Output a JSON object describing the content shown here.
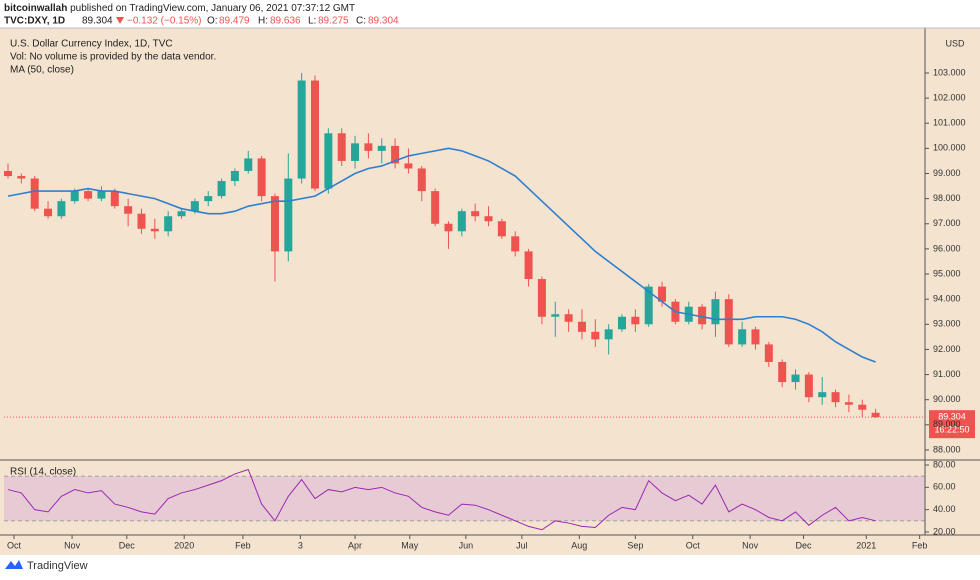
{
  "header": {
    "publisher": "bitcoinwallah",
    "published": "published on TradingView.com, January 06, 2021 07:37:12 GMT",
    "symbol": "TVC:DXY, 1D",
    "change": "−0.132 (−0.15%)",
    "o": "O:",
    "h": "H:",
    "l": "L:",
    "c": "C:"
  },
  "background": "#f3e3cf",
  "chart_data": [
    {
      "type": "candlestick",
      "title": "U.S. Dollar Currency Index, 1D, TVC",
      "notes": [
        "Vol: No volume is provided by the data vendor."
      ],
      "x": [
        0,
        1,
        2,
        3,
        4,
        5,
        6,
        7,
        8,
        9,
        10,
        11,
        12,
        13,
        14,
        15,
        16,
        17,
        18,
        19,
        20,
        21,
        22,
        23,
        24,
        25,
        26,
        27,
        28,
        29,
        30,
        31,
        32,
        33,
        34,
        35,
        36,
        37,
        38,
        39,
        40,
        41,
        42,
        43,
        44,
        45,
        46,
        47,
        48,
        49,
        50,
        51,
        52,
        53,
        54,
        55,
        56,
        57,
        58,
        59,
        60,
        61,
        62,
        63,
        64,
        65
      ],
      "open": [
        99.1,
        98.9,
        98.8,
        97.6,
        97.3,
        97.9,
        98.3,
        98.0,
        98.3,
        97.7,
        97.4,
        96.8,
        96.7,
        97.3,
        97.5,
        97.9,
        98.1,
        98.7,
        99.1,
        99.6,
        98.1,
        95.9,
        98.8,
        102.7,
        98.4,
        100.6,
        99.5,
        100.2,
        99.9,
        100.1,
        99.4,
        99.2,
        98.3,
        97.0,
        96.7,
        97.5,
        97.3,
        97.1,
        96.5,
        95.9,
        94.8,
        93.3,
        93.4,
        93.1,
        92.7,
        92.4,
        92.8,
        93.3,
        93.0,
        94.5,
        93.9,
        93.1,
        93.7,
        93.0,
        94.0,
        92.2,
        92.8,
        92.2,
        91.5,
        90.7,
        91.0,
        90.1,
        90.3,
        89.9,
        89.8,
        89.479
      ],
      "high": [
        99.4,
        99.0,
        98.9,
        97.9,
        98.0,
        98.4,
        98.4,
        98.5,
        98.4,
        98.0,
        97.6,
        97.2,
        97.5,
        97.6,
        98.0,
        98.3,
        98.8,
        99.2,
        99.9,
        99.7,
        98.2,
        99.8,
        103.0,
        102.9,
        100.8,
        100.8,
        100.5,
        100.6,
        100.4,
        100.4,
        100.0,
        99.3,
        98.4,
        97.1,
        97.6,
        97.8,
        97.7,
        97.2,
        96.7,
        96.0,
        94.9,
        93.9,
        93.6,
        93.6,
        93.2,
        93.0,
        93.4,
        93.6,
        94.6,
        94.7,
        94.0,
        93.9,
        93.8,
        94.3,
        94.2,
        93.1,
        92.9,
        92.3,
        91.6,
        91.2,
        91.1,
        90.9,
        90.4,
        90.2,
        90.0,
        89.636
      ],
      "low": [
        98.8,
        98.6,
        97.5,
        97.2,
        97.2,
        97.8,
        97.9,
        97.9,
        97.6,
        96.9,
        96.6,
        96.4,
        96.5,
        97.2,
        97.4,
        97.7,
        98.0,
        98.5,
        99.0,
        97.9,
        94.7,
        95.5,
        98.6,
        98.3,
        98.2,
        99.3,
        99.2,
        99.6,
        99.4,
        99.2,
        99.0,
        97.9,
        96.9,
        96.0,
        96.5,
        97.1,
        96.9,
        96.4,
        95.7,
        94.5,
        93.0,
        92.5,
        92.7,
        92.4,
        92.1,
        91.8,
        92.7,
        92.7,
        92.9,
        93.7,
        93.0,
        93.0,
        92.8,
        92.5,
        92.1,
        92.1,
        92.0,
        91.3,
        90.5,
        90.4,
        89.9,
        89.8,
        89.7,
        89.5,
        89.3,
        89.275
      ],
      "close": [
        98.9,
        98.8,
        97.6,
        97.3,
        97.9,
        98.3,
        98.0,
        98.3,
        97.7,
        97.4,
        96.8,
        96.7,
        97.3,
        97.5,
        97.9,
        98.1,
        98.7,
        99.1,
        99.6,
        98.1,
        95.9,
        98.8,
        102.7,
        98.4,
        100.6,
        99.5,
        100.2,
        99.9,
        100.1,
        99.4,
        99.2,
        98.3,
        97.0,
        96.7,
        97.5,
        97.3,
        97.1,
        96.5,
        95.9,
        94.8,
        93.3,
        93.4,
        93.1,
        92.7,
        92.4,
        92.8,
        93.3,
        93.0,
        94.5,
        93.9,
        93.1,
        93.7,
        93.0,
        94.0,
        92.2,
        92.8,
        92.2,
        91.5,
        90.7,
        91.0,
        90.1,
        90.3,
        89.9,
        89.8,
        89.6,
        89.304
      ],
      "up_color": "#26a69a",
      "down_color": "#ef5350",
      "series": [
        {
          "name": "MA (50, close)",
          "color": "#2f7fd1",
          "values": [
            98.1,
            98.2,
            98.3,
            98.3,
            98.3,
            98.3,
            98.4,
            98.3,
            98.3,
            98.2,
            98.1,
            98.0,
            97.8,
            97.6,
            97.5,
            97.4,
            97.4,
            97.5,
            97.7,
            97.8,
            97.9,
            97.9,
            98.0,
            98.1,
            98.4,
            98.7,
            99.0,
            99.2,
            99.3,
            99.5,
            99.7,
            99.8,
            99.9,
            100.0,
            99.9,
            99.7,
            99.5,
            99.2,
            98.9,
            98.4,
            97.9,
            97.4,
            96.9,
            96.4,
            95.9,
            95.5,
            95.1,
            94.7,
            94.3,
            93.9,
            93.5,
            93.4,
            93.3,
            93.2,
            93.2,
            93.2,
            93.3,
            93.3,
            93.3,
            93.2,
            93.0,
            92.7,
            92.3,
            92.0,
            91.7,
            91.5
          ]
        }
      ],
      "xlim": [
        -0.3,
        68.7
      ],
      "ylim": [
        87.6,
        104.71
      ],
      "yticks": [
        {
          "value": 88,
          "label": "88.000"
        },
        {
          "value": 89,
          "label": "89.000"
        },
        {
          "value": 90,
          "label": "90.000"
        },
        {
          "value": 91,
          "label": "91.000"
        },
        {
          "value": 92,
          "label": "92.000"
        },
        {
          "value": 93,
          "label": "93.000"
        },
        {
          "value": 94,
          "label": "94.000"
        },
        {
          "value": 95,
          "label": "95.000"
        },
        {
          "value": 96,
          "label": "96.000"
        },
        {
          "value": 97,
          "label": "97.000"
        },
        {
          "value": 98,
          "label": "98.000"
        },
        {
          "value": 99,
          "label": "99.000"
        },
        {
          "value": 100,
          "label": "100.000"
        },
        {
          "value": 101,
          "label": "101.000"
        },
        {
          "value": 102,
          "label": "102.000"
        },
        {
          "value": 103,
          "label": "103.000"
        }
      ],
      "y_unit": "USD",
      "countdown": "16:22:50"
    },
    {
      "type": "line",
      "x": [
        0,
        1,
        2,
        3,
        4,
        5,
        6,
        7,
        8,
        9,
        10,
        11,
        12,
        13,
        14,
        15,
        16,
        17,
        18,
        19,
        20,
        21,
        22,
        23,
        24,
        25,
        26,
        27,
        28,
        29,
        30,
        31,
        32,
        33,
        34,
        35,
        36,
        37,
        38,
        39,
        40,
        41,
        42,
        43,
        44,
        45,
        46,
        47,
        48,
        49,
        50,
        51,
        52,
        53,
        54,
        55,
        56,
        57,
        58,
        59,
        60,
        61,
        62,
        63,
        64,
        65
      ],
      "series": [
        {
          "name": "RSI (14, close)",
          "color": "#9c27b0",
          "values": [
            58,
            55,
            40,
            38,
            52,
            58,
            55,
            57,
            45,
            42,
            38,
            36,
            50,
            55,
            58,
            62,
            66,
            72,
            76,
            45,
            30,
            52,
            67,
            50,
            58,
            56,
            60,
            58,
            60,
            55,
            52,
            42,
            38,
            35,
            45,
            44,
            40,
            35,
            30,
            25,
            22,
            30,
            28,
            25,
            24,
            35,
            42,
            40,
            66,
            55,
            48,
            53,
            45,
            62,
            38,
            45,
            40,
            33,
            30,
            38,
            26,
            35,
            42,
            30,
            33,
            30
          ]
        }
      ],
      "band": [
        30,
        70
      ],
      "band_color": "#e3c3d6",
      "xlim": [
        -0.3,
        68.7
      ],
      "ylim": [
        17.3,
        84.5
      ],
      "yticks": [
        {
          "value": 20,
          "label": "20.00"
        },
        {
          "value": 40,
          "label": "40.00"
        },
        {
          "value": 60,
          "label": "60.00"
        },
        {
          "value": 80,
          "label": "80.00"
        }
      ],
      "xticks": [
        {
          "value": 0.45,
          "label": "Oct"
        },
        {
          "value": 4.8,
          "label": "Nov"
        },
        {
          "value": 8.9,
          "label": "Dec"
        },
        {
          "value": 13.2,
          "label": "2020"
        },
        {
          "value": 17.6,
          "label": "Feb"
        },
        {
          "value": 21.9,
          "label": "3"
        },
        {
          "value": 26,
          "label": "Apr"
        },
        {
          "value": 30.1,
          "label": "May"
        },
        {
          "value": 34.3,
          "label": "Jun"
        },
        {
          "value": 38.5,
          "label": "Jul"
        },
        {
          "value": 42.8,
          "label": "Aug"
        },
        {
          "value": 47,
          "label": "Sep"
        },
        {
          "value": 51.3,
          "label": "Oct"
        },
        {
          "value": 55.6,
          "label": "Nov"
        },
        {
          "value": 59.6,
          "label": "Dec"
        },
        {
          "value": 64.3,
          "label": "2021"
        },
        {
          "value": 68.3,
          "label": "Feb"
        }
      ]
    }
  ],
  "footer": {
    "brand": "TradingView"
  }
}
